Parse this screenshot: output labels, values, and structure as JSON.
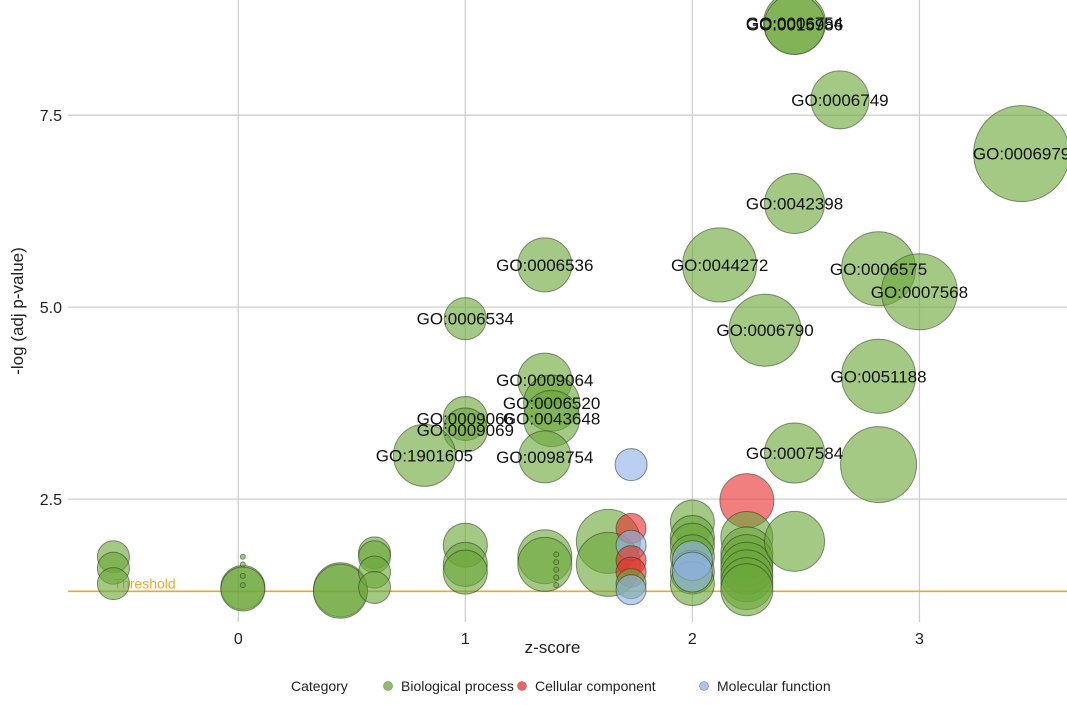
{
  "chart_data": {
    "type": "scatter",
    "title": "",
    "xlabel": "z-score",
    "ylabel": "-log (adj p-value)",
    "xlim": [
      -0.75,
      3.65
    ],
    "ylim": [
      0.9,
      9.0
    ],
    "x_ticks": [
      {
        "value": 0,
        "label": "0"
      },
      {
        "value": 1,
        "label": "1"
      },
      {
        "value": 2,
        "label": "2"
      },
      {
        "value": 3,
        "label": "3"
      }
    ],
    "y_ticks": [
      {
        "value": 2.5,
        "label": "2.5"
      },
      {
        "value": 5.0,
        "label": "5.0"
      },
      {
        "value": 7.5,
        "label": "7.5"
      }
    ],
    "grid": true,
    "threshold": {
      "value": 1.3,
      "label": "Threshold",
      "color": "#f5a623"
    },
    "legend": {
      "title": "Category",
      "position": "bottom",
      "items": [
        {
          "key": "bp",
          "label": "Biological process",
          "color": "#6aa83a"
        },
        {
          "key": "cc",
          "label": "Cellular component",
          "color": "#e83030"
        },
        {
          "key": "mf",
          "label": "Molecular function",
          "color": "#8fb2e8"
        }
      ]
    },
    "points": [
      {
        "x": 2.45,
        "y": 8.7,
        "r": 31,
        "cat": "bp",
        "label": "GO:0006754"
      },
      {
        "x": 2.45,
        "y": 8.68,
        "r": 30,
        "cat": "bp",
        "label": "GO:0015986"
      },
      {
        "x": 2.65,
        "y": 7.7,
        "r": 29,
        "cat": "bp",
        "label": "GO:0006749"
      },
      {
        "x": 3.45,
        "y": 7.0,
        "r": 48,
        "cat": "bp",
        "label": "GO:0006979"
      },
      {
        "x": 2.45,
        "y": 6.35,
        "r": 30,
        "cat": "bp",
        "label": "GO:0042398"
      },
      {
        "x": 1.35,
        "y": 5.55,
        "r": 27,
        "cat": "bp",
        "label": "GO:0006536"
      },
      {
        "x": 2.12,
        "y": 5.55,
        "r": 37,
        "cat": "bp",
        "label": "GO:0044272"
      },
      {
        "x": 2.82,
        "y": 5.5,
        "r": 37,
        "cat": "bp",
        "label": "GO:0006575"
      },
      {
        "x": 3.0,
        "y": 5.2,
        "r": 38,
        "cat": "bp",
        "label": "GO:0007568"
      },
      {
        "x": 1.0,
        "y": 4.85,
        "r": 21,
        "cat": "bp",
        "label": "GO:0006534"
      },
      {
        "x": 2.32,
        "y": 4.7,
        "r": 36,
        "cat": "bp",
        "label": "GO:0006790"
      },
      {
        "x": 1.35,
        "y": 4.05,
        "r": 27,
        "cat": "bp",
        "label": "GO:0009064"
      },
      {
        "x": 2.82,
        "y": 4.1,
        "r": 37,
        "cat": "bp",
        "label": "GO:0051188"
      },
      {
        "x": 1.38,
        "y": 3.75,
        "r": 28,
        "cat": "bp",
        "label": "GO:0006520"
      },
      {
        "x": 1.38,
        "y": 3.55,
        "r": 28,
        "cat": "bp",
        "label": "GO:0043648"
      },
      {
        "x": 1.0,
        "y": 3.55,
        "r": 22,
        "cat": "bp",
        "label": "GO:0009066"
      },
      {
        "x": 1.0,
        "y": 3.4,
        "r": 22,
        "cat": "bp",
        "label": "GO:0009069"
      },
      {
        "x": 0.82,
        "y": 3.07,
        "r": 31,
        "cat": "bp",
        "label": "GO:1901605"
      },
      {
        "x": 1.35,
        "y": 3.05,
        "r": 26,
        "cat": "bp",
        "label": "GO:0098754"
      },
      {
        "x": 2.45,
        "y": 3.1,
        "r": 30,
        "cat": "bp",
        "label": "GO:0007584"
      },
      {
        "x": 2.82,
        "y": 2.95,
        "r": 38,
        "cat": "bp",
        "label": ""
      },
      {
        "x": 1.73,
        "y": 2.95,
        "r": 16,
        "cat": "mf",
        "label": ""
      },
      {
        "x": 2.24,
        "y": 2.48,
        "r": 27,
        "cat": "cc",
        "label": ""
      },
      {
        "x": -0.55,
        "y": 1.75,
        "r": 16,
        "cat": "bp",
        "label": ""
      },
      {
        "x": -0.55,
        "y": 1.6,
        "r": 16,
        "cat": "bp",
        "label": ""
      },
      {
        "x": -0.55,
        "y": 1.4,
        "r": 16,
        "cat": "bp",
        "label": ""
      },
      {
        "x": 0.02,
        "y": 1.35,
        "r": 22,
        "cat": "bp",
        "label": ""
      },
      {
        "x": 0.02,
        "y": 1.33,
        "r": 22,
        "cat": "bp",
        "label": ""
      },
      {
        "x": 0.02,
        "y": 1.75,
        "r": 2.5,
        "cat": "bp",
        "label": ""
      },
      {
        "x": 0.02,
        "y": 1.65,
        "r": 2.5,
        "cat": "bp",
        "label": ""
      },
      {
        "x": 0.02,
        "y": 1.5,
        "r": 2.5,
        "cat": "bp",
        "label": ""
      },
      {
        "x": 0.02,
        "y": 1.38,
        "r": 2.5,
        "cat": "bp",
        "label": ""
      },
      {
        "x": 0.45,
        "y": 1.32,
        "r": 27,
        "cat": "bp",
        "label": ""
      },
      {
        "x": 0.45,
        "y": 1.3,
        "r": 27,
        "cat": "bp",
        "label": ""
      },
      {
        "x": 0.6,
        "y": 1.8,
        "r": 16,
        "cat": "bp",
        "label": ""
      },
      {
        "x": 0.6,
        "y": 1.75,
        "r": 16,
        "cat": "bp",
        "label": ""
      },
      {
        "x": 0.6,
        "y": 1.55,
        "r": 16,
        "cat": "bp",
        "label": ""
      },
      {
        "x": 0.6,
        "y": 1.35,
        "r": 16,
        "cat": "bp",
        "label": ""
      },
      {
        "x": 1.0,
        "y": 1.9,
        "r": 22,
        "cat": "bp",
        "label": ""
      },
      {
        "x": 1.0,
        "y": 1.65,
        "r": 22,
        "cat": "bp",
        "label": ""
      },
      {
        "x": 1.0,
        "y": 1.55,
        "r": 22,
        "cat": "bp",
        "label": ""
      },
      {
        "x": 1.35,
        "y": 1.75,
        "r": 27,
        "cat": "bp",
        "label": ""
      },
      {
        "x": 1.35,
        "y": 1.65,
        "r": 27,
        "cat": "bp",
        "label": ""
      },
      {
        "x": 1.4,
        "y": 1.78,
        "r": 2.5,
        "cat": "bp",
        "label": ""
      },
      {
        "x": 1.4,
        "y": 1.68,
        "r": 2.5,
        "cat": "bp",
        "label": ""
      },
      {
        "x": 1.4,
        "y": 1.58,
        "r": 2.5,
        "cat": "bp",
        "label": ""
      },
      {
        "x": 1.4,
        "y": 1.48,
        "r": 2.5,
        "cat": "bp",
        "label": ""
      },
      {
        "x": 1.4,
        "y": 1.38,
        "r": 2.5,
        "cat": "bp",
        "label": ""
      },
      {
        "x": 1.63,
        "y": 1.95,
        "r": 32,
        "cat": "bp",
        "label": ""
      },
      {
        "x": 1.63,
        "y": 1.65,
        "r": 32,
        "cat": "bp",
        "label": ""
      },
      {
        "x": 1.73,
        "y": 2.12,
        "r": 15,
        "cat": "cc",
        "label": ""
      },
      {
        "x": 1.73,
        "y": 1.9,
        "r": 15,
        "cat": "mf",
        "label": ""
      },
      {
        "x": 1.73,
        "y": 1.7,
        "r": 15,
        "cat": "cc",
        "label": ""
      },
      {
        "x": 1.73,
        "y": 1.55,
        "r": 15,
        "cat": "cc",
        "label": ""
      },
      {
        "x": 1.73,
        "y": 1.4,
        "r": 15,
        "cat": "bp",
        "label": ""
      },
      {
        "x": 1.73,
        "y": 1.32,
        "r": 15,
        "cat": "mf",
        "label": ""
      },
      {
        "x": 2.0,
        "y": 2.2,
        "r": 22,
        "cat": "bp",
        "label": ""
      },
      {
        "x": 2.0,
        "y": 2.0,
        "r": 22,
        "cat": "bp",
        "label": ""
      },
      {
        "x": 2.0,
        "y": 1.9,
        "r": 22,
        "cat": "bp",
        "label": ""
      },
      {
        "x": 2.0,
        "y": 1.75,
        "r": 22,
        "cat": "bp",
        "label": ""
      },
      {
        "x": 2.0,
        "y": 1.55,
        "r": 22,
        "cat": "bp",
        "label": ""
      },
      {
        "x": 2.0,
        "y": 1.4,
        "r": 22,
        "cat": "bp",
        "label": ""
      },
      {
        "x": 2.0,
        "y": 1.7,
        "r": 20,
        "cat": "mf",
        "label": ""
      },
      {
        "x": 2.0,
        "y": 1.55,
        "r": 20,
        "cat": "mf",
        "label": ""
      },
      {
        "x": 2.24,
        "y": 2.0,
        "r": 26,
        "cat": "bp",
        "label": ""
      },
      {
        "x": 2.24,
        "y": 1.8,
        "r": 26,
        "cat": "bp",
        "label": ""
      },
      {
        "x": 2.24,
        "y": 1.7,
        "r": 26,
        "cat": "bp",
        "label": ""
      },
      {
        "x": 2.24,
        "y": 1.6,
        "r": 26,
        "cat": "bp",
        "label": ""
      },
      {
        "x": 2.24,
        "y": 1.5,
        "r": 26,
        "cat": "bp",
        "label": ""
      },
      {
        "x": 2.24,
        "y": 1.4,
        "r": 26,
        "cat": "bp",
        "label": ""
      },
      {
        "x": 2.24,
        "y": 1.32,
        "r": 26,
        "cat": "bp",
        "label": ""
      },
      {
        "x": 2.45,
        "y": 1.95,
        "r": 30,
        "cat": "bp",
        "label": ""
      }
    ]
  }
}
